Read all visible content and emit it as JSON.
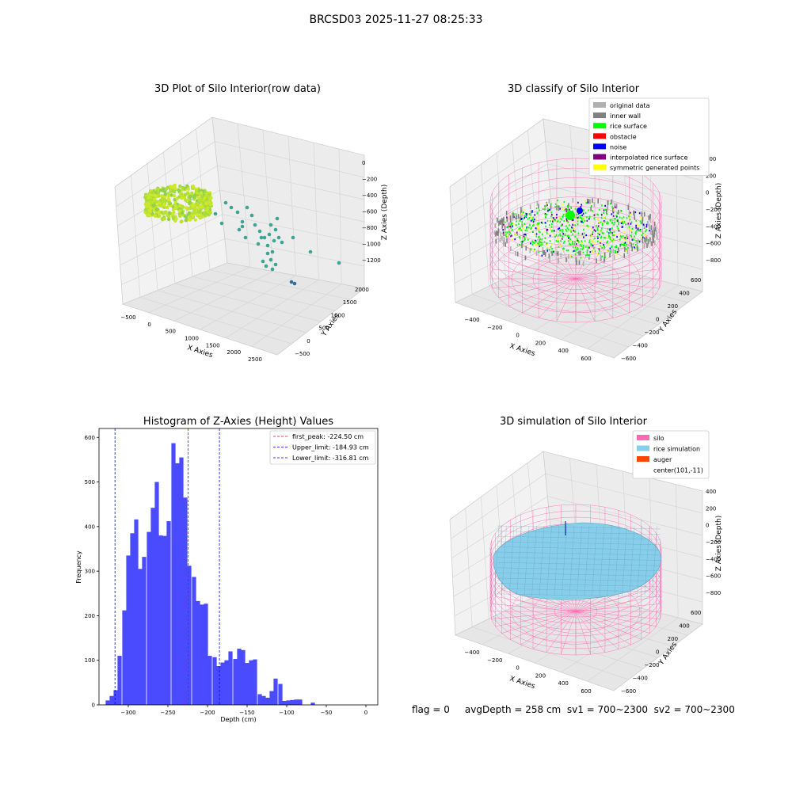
{
  "suptitle": "BRCSD03 2025-11-27 08:25:33",
  "footer": "flag = 0     avgDepth = 258 cm  sv1 = 700~2300  sv2 = 700~2300",
  "colors": {
    "hist_bar": "#4a4aff",
    "first_peak_line": "#ff0000",
    "limit_line": "#0000ff",
    "silo": "#ff69b4",
    "rice_simulation": "#87ceeb",
    "auger": "#ff4500",
    "original_data": "#b0b0b0",
    "inner_wall": "#808080",
    "rice_surface": "#00ff00",
    "obstacle": "#ff0000",
    "noise": "#0000ff",
    "interpolated_rice_surface": "#800080",
    "symmetric_generated_points": "#ffff00"
  },
  "panel_raw": {
    "title": "3D Plot of Silo Interior(row data)",
    "xlabel": "X Axies",
    "ylabel": "Y Axies",
    "zlabel": "Z Axies (Depth)",
    "xticks": [
      "−500",
      "0",
      "500",
      "1000",
      "1500",
      "2000",
      "2500"
    ],
    "yticks": [
      "−500",
      "0",
      "500",
      "1000",
      "1500",
      "2000"
    ],
    "zticks": [
      "0",
      "−200",
      "−400",
      "−600",
      "−800",
      "−1000",
      "−1200"
    ]
  },
  "panel_classify": {
    "title": "3D classify of Silo Interior",
    "xlabel": "X Axies",
    "ylabel": "Y Axies",
    "zlabel": "Z Axies (Depth)",
    "xticks": [
      "−400",
      "−200",
      "0",
      "200",
      "400",
      "600"
    ],
    "yticks": [
      "−600",
      "−400",
      "−200",
      "0",
      "200",
      "400",
      "600"
    ],
    "zticks": [
      "400",
      "200",
      "0",
      "−200",
      "−400",
      "−600",
      "−800"
    ],
    "legend": [
      {
        "label": "original data",
        "color": "#b0b0b0"
      },
      {
        "label": "inner wall",
        "color": "#808080"
      },
      {
        "label": "rice surface",
        "color": "#00ff00"
      },
      {
        "label": "obstacle",
        "color": "#ff0000"
      },
      {
        "label": "noise",
        "color": "#0000ff"
      },
      {
        "label": "interpolated rice surface",
        "color": "#800080"
      },
      {
        "label": "symmetric generated points",
        "color": "#ffff00"
      }
    ]
  },
  "panel_sim": {
    "title": "3D simulation of Silo Interior",
    "xlabel": "X Axies",
    "ylabel": "Y Axies",
    "zlabel": "Z Axies (Depth)",
    "xticks": [
      "−400",
      "−200",
      "0",
      "200",
      "400",
      "600"
    ],
    "yticks": [
      "−600",
      "−400",
      "−200",
      "0",
      "200",
      "400",
      "600"
    ],
    "zticks": [
      "400",
      "200",
      "0",
      "−200",
      "−400",
      "−600",
      "−800"
    ],
    "legend": [
      {
        "label": "silo",
        "color": "#ff69b4"
      },
      {
        "label": "rice simulation",
        "color": "#87ceeb"
      },
      {
        "label": "auger",
        "color": "#ff4500"
      },
      {
        "label": "center(101,-11)",
        "color": ""
      }
    ]
  },
  "chart_data": [
    {
      "type": "histogram",
      "title": "Histogram of Z-Axies (Height) Values",
      "xlabel": "Depth (cm)",
      "ylabel": "Frequency",
      "xlim": [
        -337,
        15
      ],
      "ylim": [
        0,
        620
      ],
      "xticks": [
        -300,
        -250,
        -200,
        -150,
        -100,
        -50,
        0
      ],
      "yticks": [
        0,
        100,
        200,
        300,
        400,
        500,
        600
      ],
      "bin_width": 5.2,
      "bins": [
        {
          "x": -326,
          "count": 10
        },
        {
          "x": -321,
          "count": 20
        },
        {
          "x": -316,
          "count": 33
        },
        {
          "x": -311,
          "count": 110
        },
        {
          "x": -305,
          "count": 212
        },
        {
          "x": -300,
          "count": 335
        },
        {
          "x": -295,
          "count": 385
        },
        {
          "x": -290,
          "count": 416
        },
        {
          "x": -285,
          "count": 305
        },
        {
          "x": -280,
          "count": 332
        },
        {
          "x": -274,
          "count": 388
        },
        {
          "x": -269,
          "count": 442
        },
        {
          "x": -264,
          "count": 500
        },
        {
          "x": -259,
          "count": 380
        },
        {
          "x": -254,
          "count": 379
        },
        {
          "x": -249,
          "count": 412
        },
        {
          "x": -243,
          "count": 587
        },
        {
          "x": -238,
          "count": 542
        },
        {
          "x": -233,
          "count": 555
        },
        {
          "x": -228,
          "count": 465
        },
        {
          "x": -223,
          "count": 312
        },
        {
          "x": -217,
          "count": 287
        },
        {
          "x": -212,
          "count": 233
        },
        {
          "x": -207,
          "count": 225
        },
        {
          "x": -202,
          "count": 227
        },
        {
          "x": -197,
          "count": 110
        },
        {
          "x": -191,
          "count": 107
        },
        {
          "x": -186,
          "count": 87
        },
        {
          "x": -181,
          "count": 95
        },
        {
          "x": -176,
          "count": 100
        },
        {
          "x": -171,
          "count": 120
        },
        {
          "x": -165,
          "count": 103
        },
        {
          "x": -160,
          "count": 126
        },
        {
          "x": -155,
          "count": 123
        },
        {
          "x": -150,
          "count": 94
        },
        {
          "x": -145,
          "count": 100
        },
        {
          "x": -140,
          "count": 102
        },
        {
          "x": -134,
          "count": 24
        },
        {
          "x": -129,
          "count": 20
        },
        {
          "x": -124,
          "count": 16
        },
        {
          "x": -119,
          "count": 31
        },
        {
          "x": -114,
          "count": 59
        },
        {
          "x": -108,
          "count": 47
        },
        {
          "x": -103,
          "count": 9
        },
        {
          "x": -98,
          "count": 10
        },
        {
          "x": -93,
          "count": 11
        },
        {
          "x": -88,
          "count": 12
        },
        {
          "x": -83,
          "count": 12
        },
        {
          "x": -77,
          "count": 0
        },
        {
          "x": -72,
          "count": 0
        },
        {
          "x": -67,
          "count": 5
        }
      ],
      "vlines": [
        {
          "x": -224.5,
          "label": "first_peak: -224.50 cm",
          "color": "#ff0000"
        },
        {
          "x": -184.93,
          "label": "Upper_limit: -184.93 cm",
          "color": "#0000ff"
        },
        {
          "x": -316.81,
          "label": "Lower_limit: -316.81 cm",
          "color": "#0000ff"
        }
      ],
      "legend_position": "top-right"
    }
  ]
}
